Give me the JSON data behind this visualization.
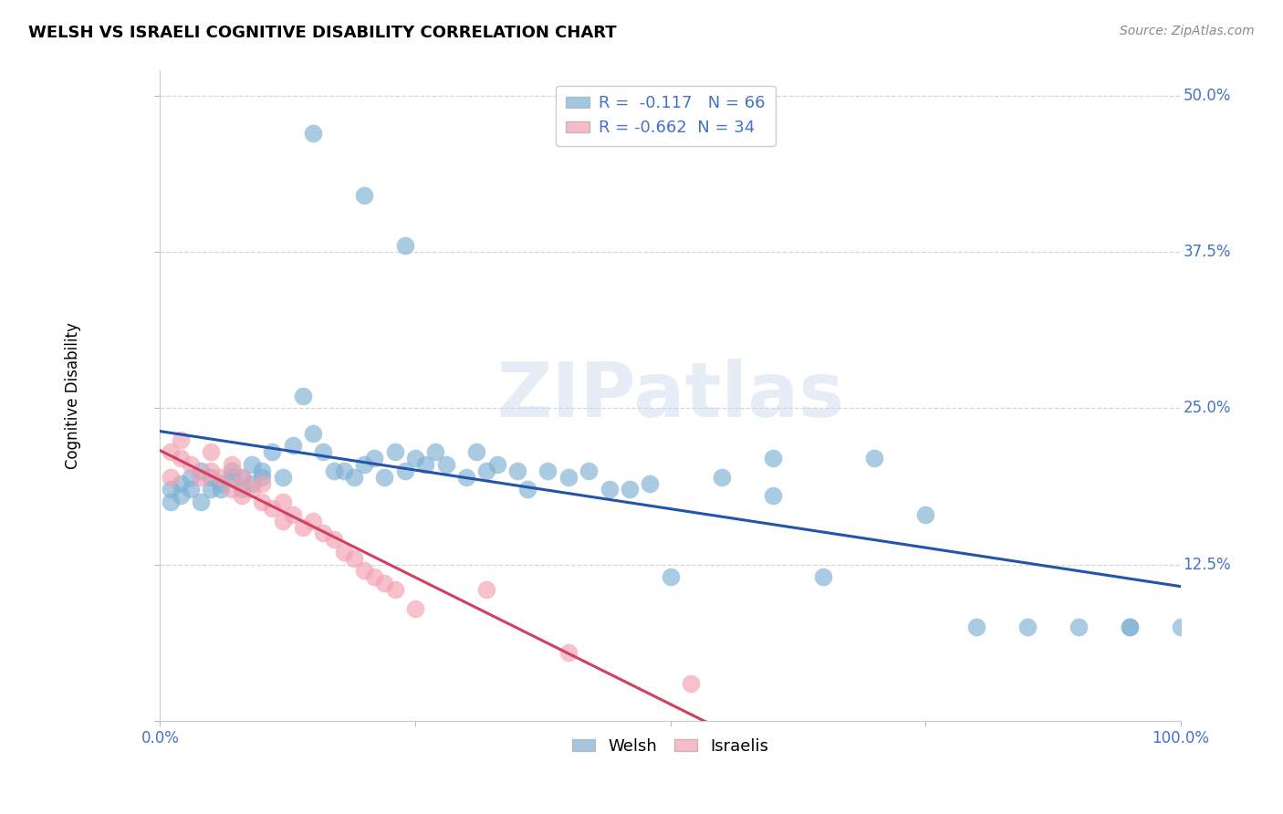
{
  "title": "WELSH VS ISRAELI COGNITIVE DISABILITY CORRELATION CHART",
  "source": "Source: ZipAtlas.com",
  "ylabel": "Cognitive Disability",
  "xlim": [
    0.0,
    1.0
  ],
  "ylim": [
    0.0,
    0.52
  ],
  "x_ticks": [
    0.0,
    0.25,
    0.5,
    0.75,
    1.0
  ],
  "x_tick_labels": [
    "0.0%",
    "",
    "",
    "",
    "100.0%"
  ],
  "y_ticks": [
    0.0,
    0.125,
    0.25,
    0.375,
    0.5
  ],
  "y_tick_labels": [
    "",
    "12.5%",
    "25.0%",
    "37.5%",
    "50.0%"
  ],
  "welsh_color": "#7EB0D5",
  "israeli_color": "#F4A0B0",
  "welsh_line_color": "#2255AA",
  "israeli_line_color": "#D04060",
  "welsh_R": -0.117,
  "welsh_N": 66,
  "israeli_R": -0.662,
  "israeli_N": 34,
  "background_color": "#FFFFFF",
  "grid_color": "#CCCCCC",
  "welsh_x": [
    0.01,
    0.01,
    0.02,
    0.02,
    0.03,
    0.03,
    0.04,
    0.04,
    0.05,
    0.05,
    0.06,
    0.06,
    0.07,
    0.07,
    0.08,
    0.08,
    0.09,
    0.09,
    0.1,
    0.1,
    0.11,
    0.12,
    0.13,
    0.14,
    0.15,
    0.16,
    0.17,
    0.18,
    0.19,
    0.2,
    0.21,
    0.22,
    0.23,
    0.24,
    0.25,
    0.26,
    0.27,
    0.28,
    0.3,
    0.31,
    0.32,
    0.33,
    0.35,
    0.36,
    0.38,
    0.4,
    0.42,
    0.44,
    0.46,
    0.48,
    0.5,
    0.55,
    0.6,
    0.65,
    0.7,
    0.75,
    0.8,
    0.85,
    0.9,
    0.95,
    1.0,
    0.15,
    0.2,
    0.24,
    0.6,
    0.95
  ],
  "welsh_y": [
    0.185,
    0.175,
    0.19,
    0.18,
    0.195,
    0.185,
    0.2,
    0.175,
    0.195,
    0.185,
    0.19,
    0.185,
    0.2,
    0.195,
    0.195,
    0.185,
    0.205,
    0.19,
    0.195,
    0.2,
    0.215,
    0.195,
    0.22,
    0.26,
    0.23,
    0.215,
    0.2,
    0.2,
    0.195,
    0.205,
    0.21,
    0.195,
    0.215,
    0.2,
    0.21,
    0.205,
    0.215,
    0.205,
    0.195,
    0.215,
    0.2,
    0.205,
    0.2,
    0.185,
    0.2,
    0.195,
    0.2,
    0.185,
    0.185,
    0.19,
    0.115,
    0.195,
    0.18,
    0.115,
    0.21,
    0.165,
    0.075,
    0.075,
    0.075,
    0.075,
    0.075,
    0.47,
    0.42,
    0.38,
    0.21,
    0.075
  ],
  "israeli_x": [
    0.01,
    0.01,
    0.02,
    0.02,
    0.03,
    0.04,
    0.05,
    0.05,
    0.06,
    0.07,
    0.07,
    0.08,
    0.08,
    0.09,
    0.1,
    0.1,
    0.11,
    0.12,
    0.12,
    0.13,
    0.14,
    0.15,
    0.16,
    0.17,
    0.18,
    0.19,
    0.2,
    0.21,
    0.22,
    0.23,
    0.25,
    0.32,
    0.4,
    0.52
  ],
  "israeli_y": [
    0.215,
    0.195,
    0.225,
    0.21,
    0.205,
    0.195,
    0.215,
    0.2,
    0.195,
    0.205,
    0.185,
    0.195,
    0.18,
    0.185,
    0.19,
    0.175,
    0.17,
    0.175,
    0.16,
    0.165,
    0.155,
    0.16,
    0.15,
    0.145,
    0.135,
    0.13,
    0.12,
    0.115,
    0.11,
    0.105,
    0.09,
    0.105,
    0.055,
    0.03
  ]
}
